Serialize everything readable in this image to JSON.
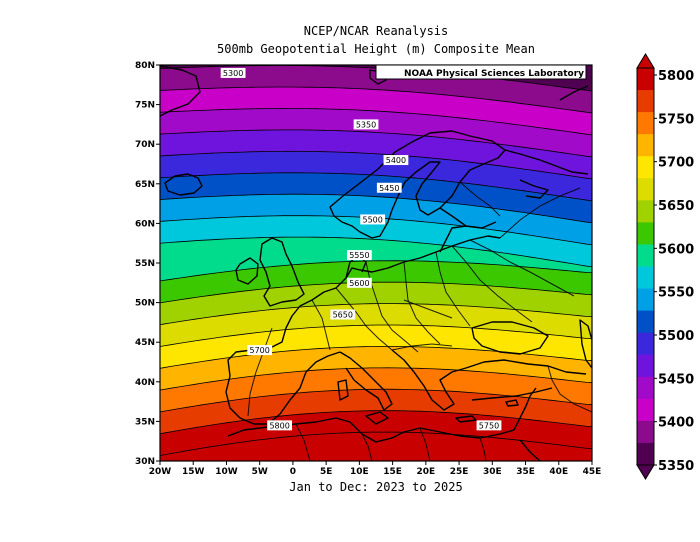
{
  "title_line1": "NCEP/NCAR Reanalysis",
  "title_line2": "500mb Geopotential Height (m) Composite Mean",
  "footer": "Jan to Dec: 2023 to 2025",
  "credit": "NOAA Physical Sciences Laboratory",
  "lat_labels": [
    "80N",
    "75N",
    "70N",
    "65N",
    "60N",
    "55N",
    "50N",
    "45N",
    "40N",
    "35N",
    "30N"
  ],
  "lon_labels": [
    "20W",
    "15W",
    "10W",
    "5W",
    "0",
    "5E",
    "10E",
    "15E",
    "20E",
    "25E",
    "30E",
    "35E",
    "40E",
    "45E"
  ],
  "contour_labels": [
    "5300",
    "5350",
    "5400",
    "5450",
    "5500",
    "5550",
    "5600",
    "5650",
    "5700",
    "5750",
    "5800"
  ],
  "colorbar": {
    "labels": [
      "5800",
      "5750",
      "5700",
      "5650",
      "5600",
      "5550",
      "5500",
      "5450",
      "5400",
      "5350"
    ],
    "colors": [
      "#c80000",
      "#e63c00",
      "#ff7800",
      "#ffb400",
      "#ffe600",
      "#dcdc00",
      "#a0d200",
      "#3cc800",
      "#00dc8c",
      "#00c8dc",
      "#00a0e6",
      "#0050c8",
      "#3c28dc",
      "#6e14dc",
      "#a00ac8",
      "#c800c8",
      "#8c0a8c",
      "#500050"
    ]
  },
  "chart_data": {
    "type": "heatmap",
    "title": "500mb Geopotential Height (m) Composite Mean",
    "x_range": [
      "20W",
      "45E"
    ],
    "y_range": [
      "30N",
      "80N"
    ],
    "levels_m": [
      5300,
      5350,
      5400,
      5450,
      5500,
      5550,
      5600,
      5650,
      5700,
      5750,
      5800
    ],
    "labeled_contours": [
      {
        "value": 5300,
        "lon": -9,
        "lat": 79
      },
      {
        "value": 5350,
        "lon": 11,
        "lat": 72.5
      },
      {
        "value": 5400,
        "lon": 15.5,
        "lat": 68
      },
      {
        "value": 5450,
        "lon": 14.5,
        "lat": 64.5
      },
      {
        "value": 5500,
        "lon": 12,
        "lat": 60.5
      },
      {
        "value": 5550,
        "lon": 10,
        "lat": 56
      },
      {
        "value": 5600,
        "lon": 10,
        "lat": 52.5
      },
      {
        "value": 5650,
        "lon": 7.5,
        "lat": 48.5
      },
      {
        "value": 5700,
        "lon": -5,
        "lat": 44
      },
      {
        "value": 5750,
        "lon": 29.5,
        "lat": 34.5
      },
      {
        "value": 5800,
        "lon": -2,
        "lat": 34.5
      }
    ]
  }
}
